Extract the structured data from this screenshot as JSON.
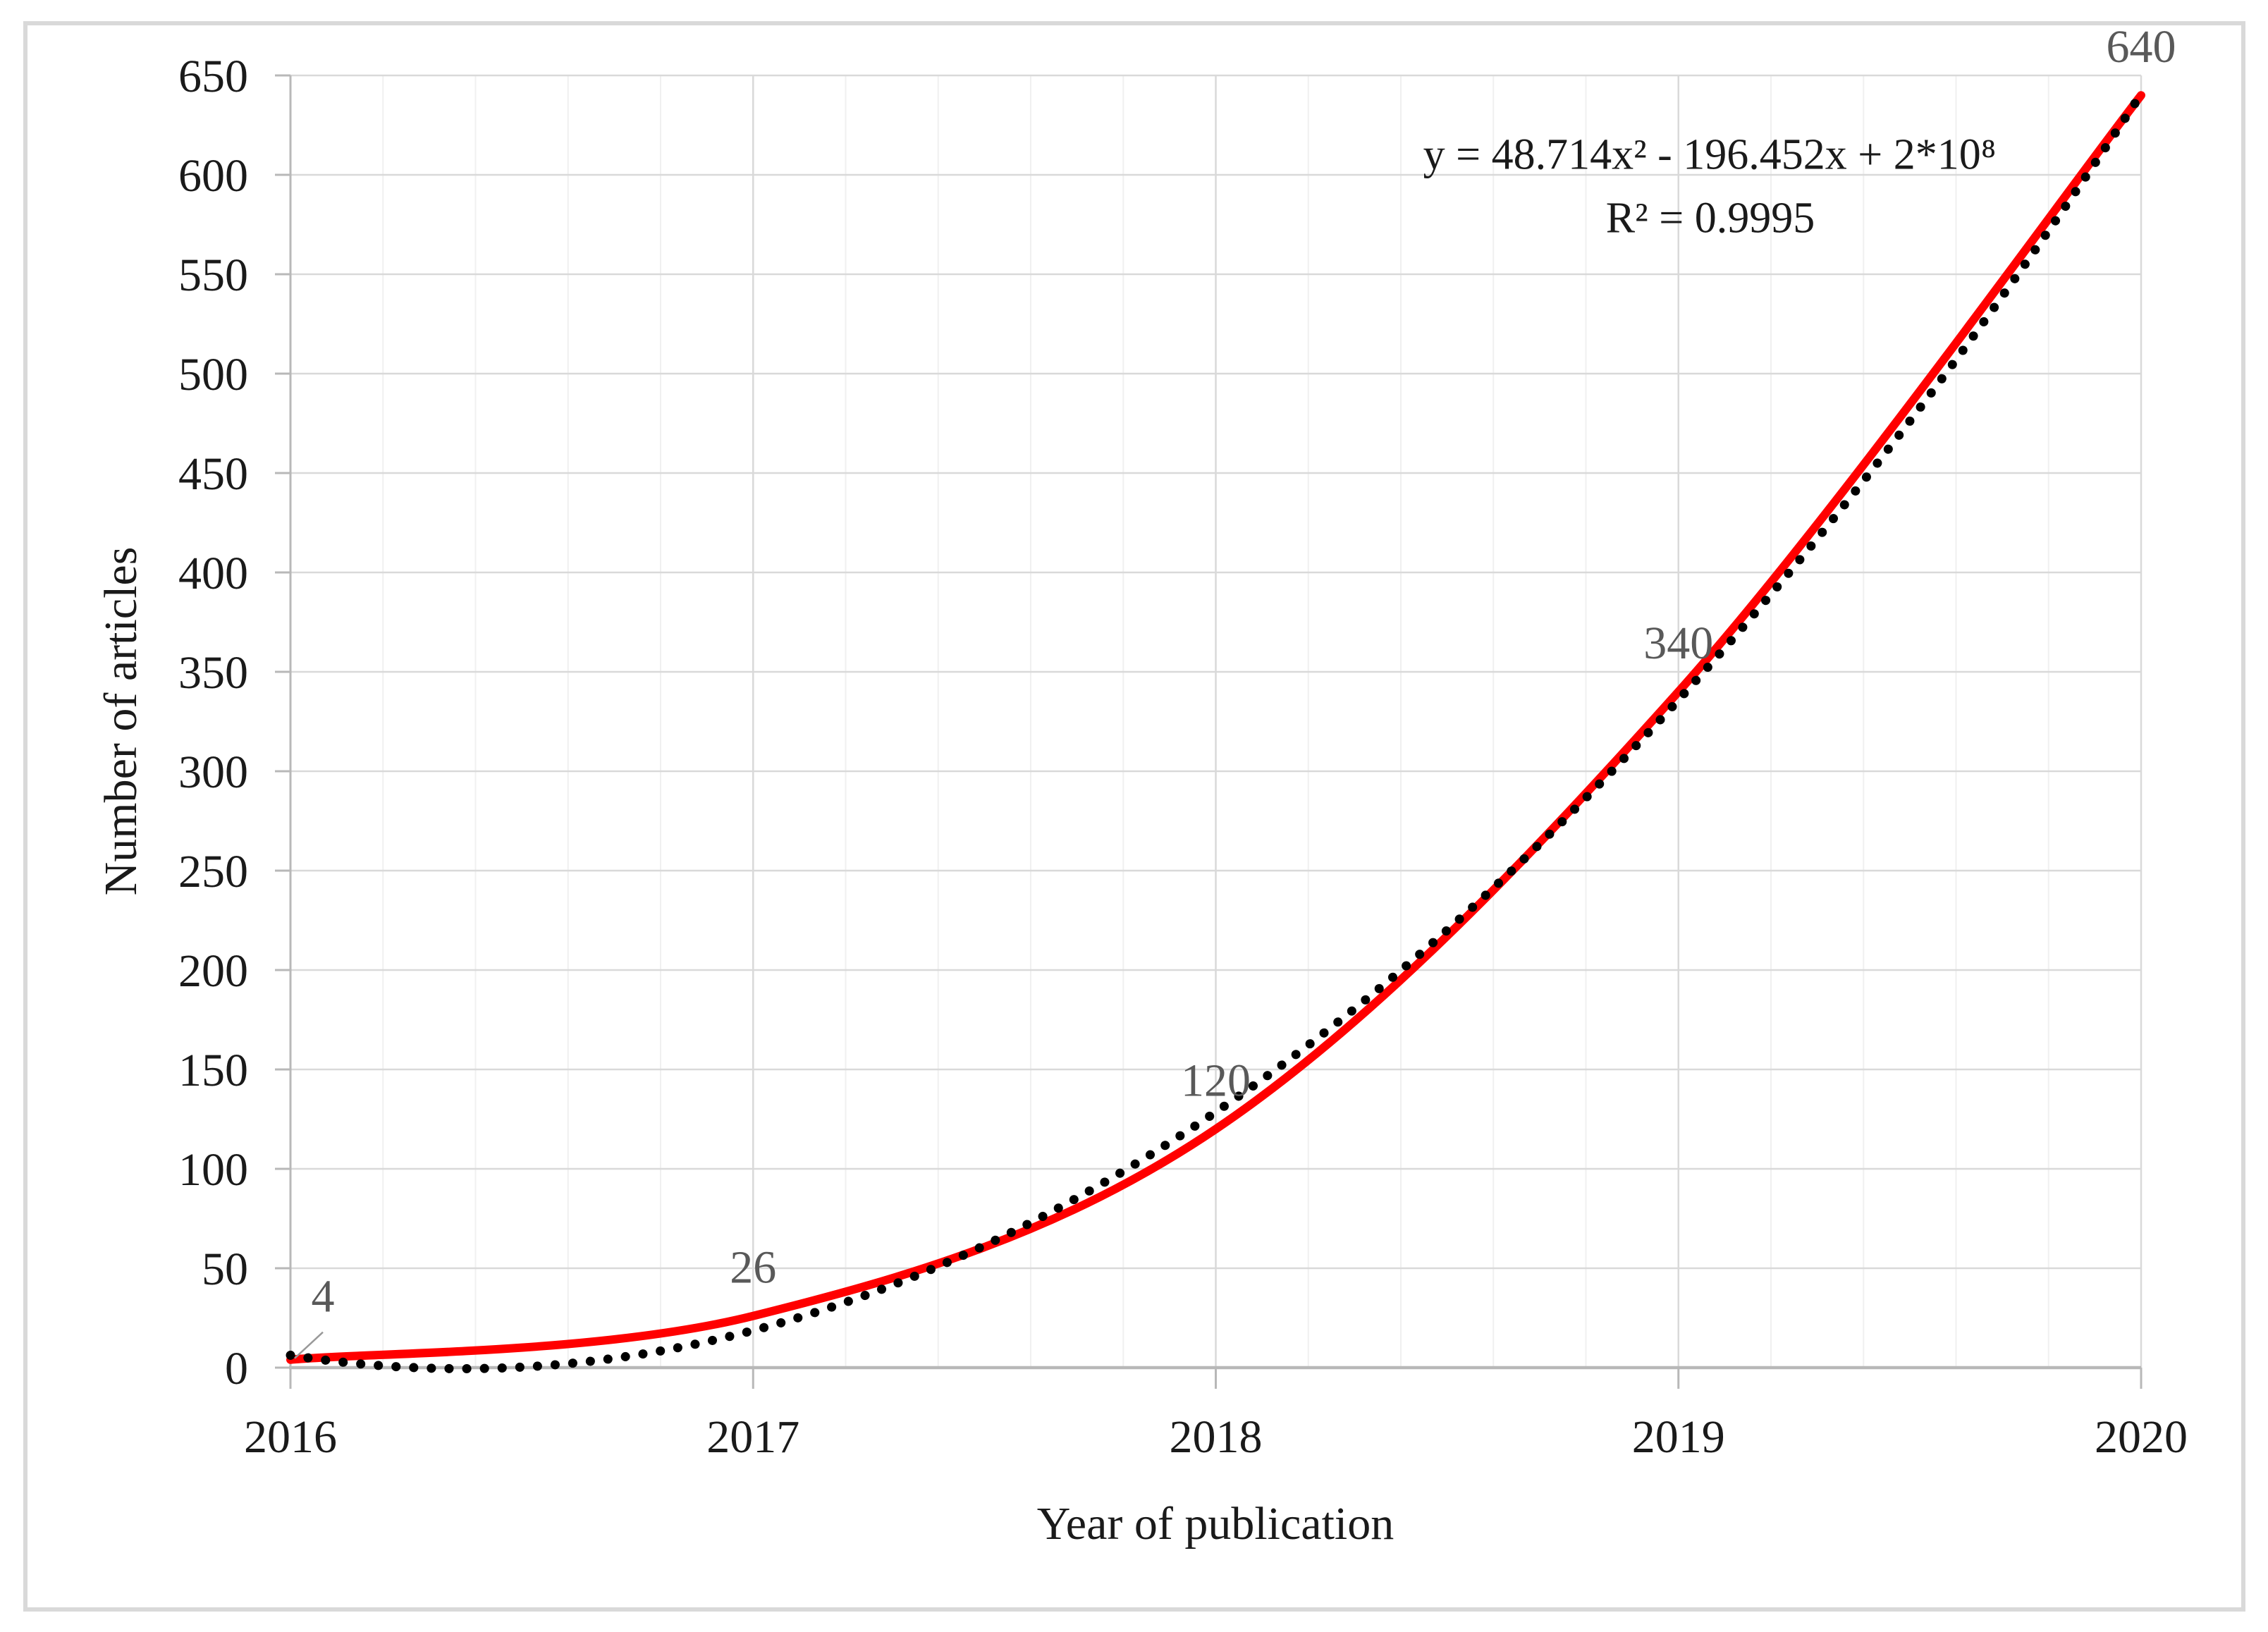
{
  "chart_data": {
    "type": "line",
    "title": "",
    "xlabel": "Year of publication",
    "ylabel": "Number of articles",
    "x": [
      2016,
      2017,
      2018,
      2019,
      2020
    ],
    "series": [
      {
        "name": "Number of articles",
        "values": [
          4,
          26,
          120,
          340,
          640
        ],
        "color": "#ff0000",
        "line_style": "solid-smooth",
        "data_labels": [
          "4",
          "26",
          "120",
          "340",
          "640"
        ]
      },
      {
        "name": "Polynomial trendline",
        "fit": "quadratic-least-squares-of-series-0",
        "color": "#000000",
        "line_style": "round-dot"
      }
    ],
    "xlim": [
      2016,
      2020
    ],
    "ylim": [
      0,
      650
    ],
    "y_tick_step": 50,
    "x_tick_step": 1,
    "x_minor_step": 0.2,
    "grid": true,
    "legend": "none",
    "annotation": {
      "equation": "y = 48.714x² - 196.452x + 2*10⁸",
      "r_squared": "R² = 0.9995"
    }
  },
  "style": {
    "background": "#ffffff",
    "figure_border_color": "#d9d9d9",
    "major_gridline_color": "#d9d9d9",
    "minor_gridline_color": "#f0f0f0",
    "axis_line_color": "#b8b8b8",
    "tick_color": "#b8b8b8",
    "tick_label_color": "#1a1a1a",
    "axis_title_color": "#1a1a1a",
    "annotation_color": "#1a1a1a",
    "data_label_color": "#595959",
    "leader_line_color": "#999999"
  }
}
